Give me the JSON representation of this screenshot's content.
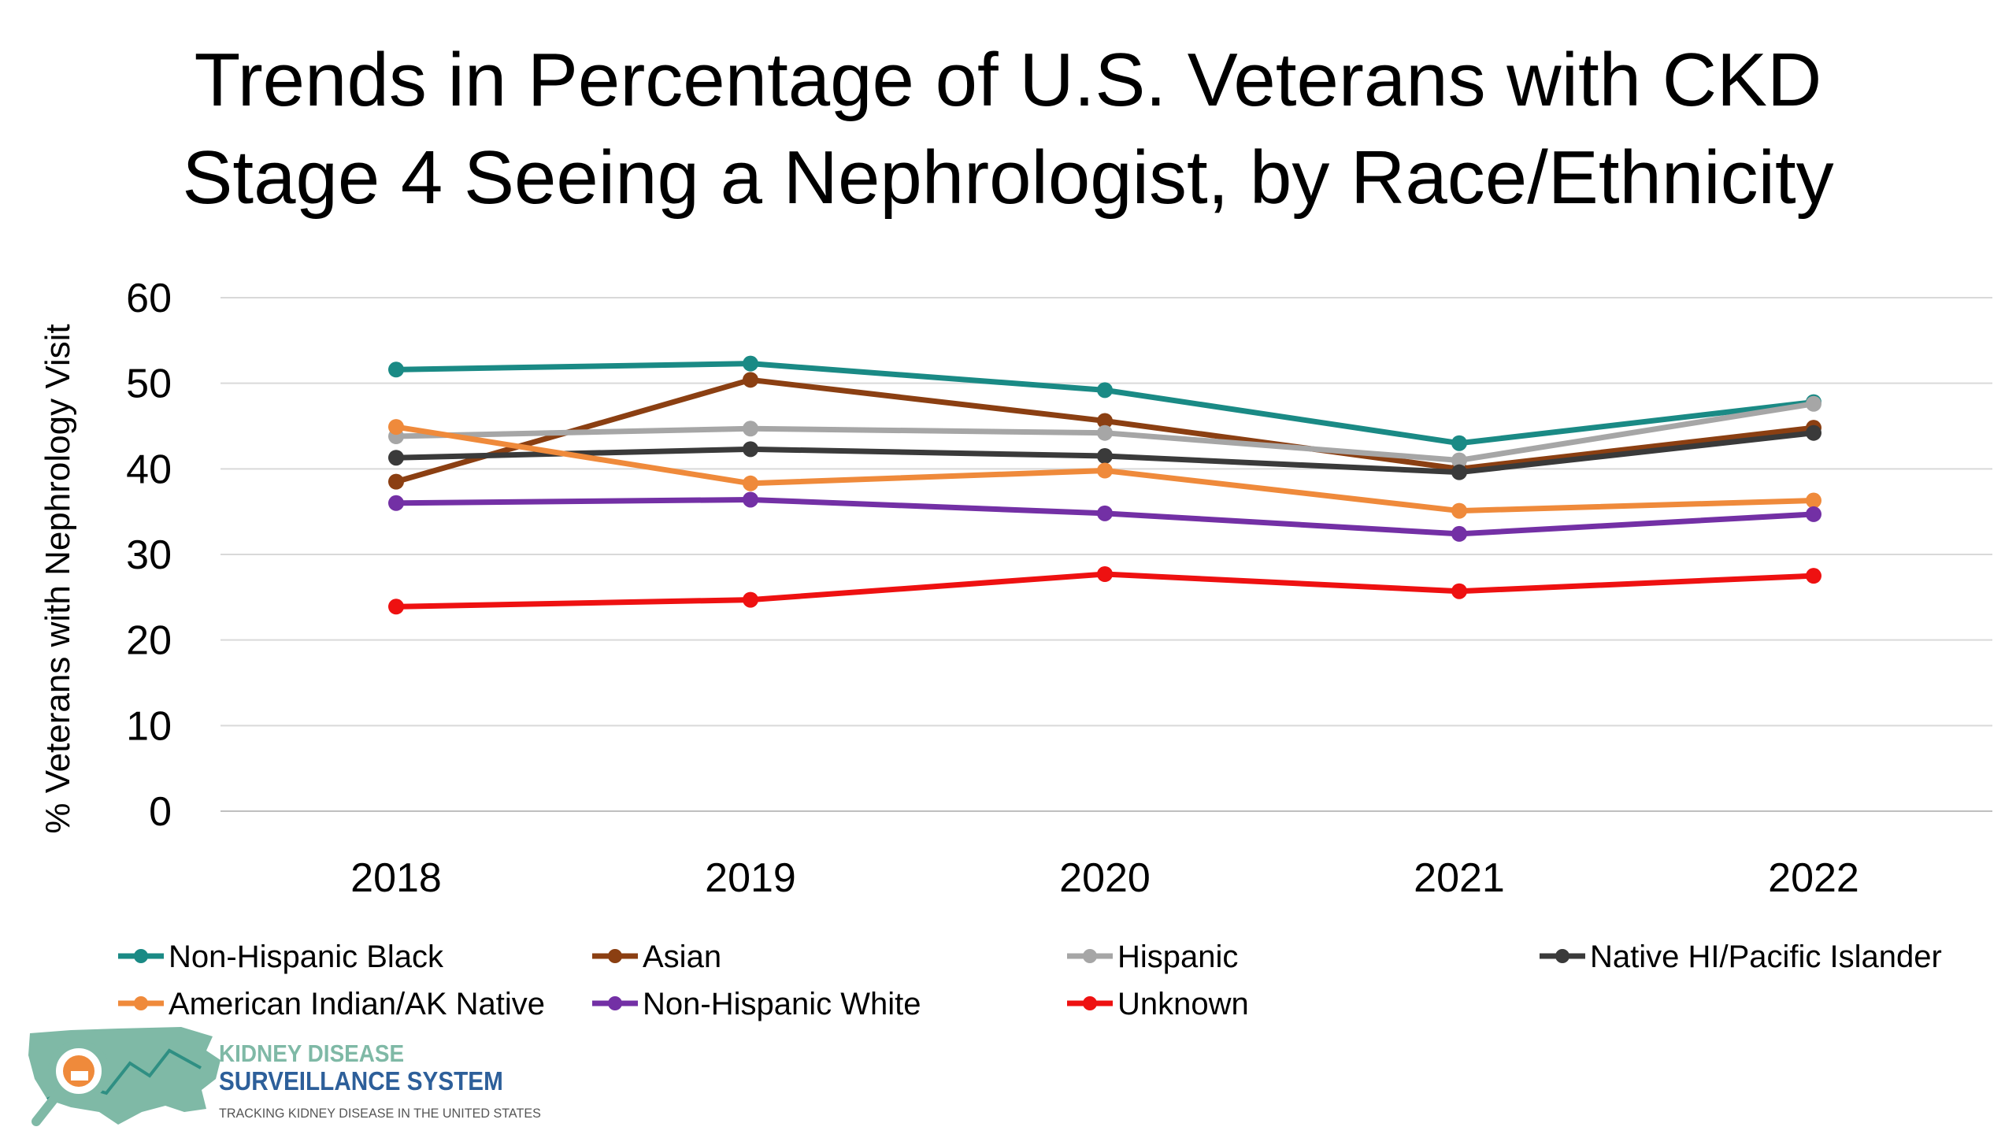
{
  "chart_data": {
    "type": "line",
    "title_lines": [
      "Trends in Percentage of U.S. Veterans with CKD",
      "Stage 4 Seeing a Nephrologist, by Race/Ethnicity"
    ],
    "xlabel": "",
    "ylabel": "% Veterans with Nephrology Visit",
    "x": [
      "2018",
      "2019",
      "2020",
      "2021",
      "2022"
    ],
    "ylim": [
      0,
      60
    ],
    "yticks": [
      "0",
      "10",
      "20",
      "30",
      "40",
      "50",
      "60"
    ],
    "grid": true,
    "legend_position": "bottom",
    "series": [
      {
        "name": "Non-Hispanic Black",
        "color": "#1a8a85",
        "values": [
          51.6,
          52.3,
          49.2,
          43.0,
          47.8
        ]
      },
      {
        "name": "Asian",
        "color": "#8b3f12",
        "values": [
          38.5,
          50.4,
          45.6,
          40.0,
          44.8
        ]
      },
      {
        "name": "Hispanic",
        "color": "#a6a6a6",
        "values": [
          43.8,
          44.7,
          44.2,
          41.0,
          47.6
        ]
      },
      {
        "name": "Native HI/Pacific Islander",
        "color": "#3a3a3a",
        "values": [
          41.3,
          42.3,
          41.5,
          39.6,
          44.2
        ]
      },
      {
        "name": "American Indian/AK Native",
        "color": "#ef8a3b",
        "values": [
          44.9,
          38.3,
          39.8,
          35.1,
          36.3
        ]
      },
      {
        "name": "Non-Hispanic White",
        "color": "#7330a5",
        "values": [
          36.0,
          36.4,
          34.8,
          32.4,
          34.7
        ]
      },
      {
        "name": "Unknown",
        "color": "#ee1111",
        "values": [
          23.9,
          24.7,
          27.7,
          25.7,
          27.5
        ]
      }
    ]
  },
  "logo": {
    "line1": "KIDNEY DISEASE",
    "line2": "SURVEILLANCE SYSTEM",
    "tagline": "TRACKING KIDNEY DISEASE IN THE UNITED STATES",
    "colors": {
      "teal": "#7fb9a6",
      "dark_teal": "#2f8f83",
      "blue": "#2d5f9a",
      "orange": "#ef8a3b"
    }
  }
}
